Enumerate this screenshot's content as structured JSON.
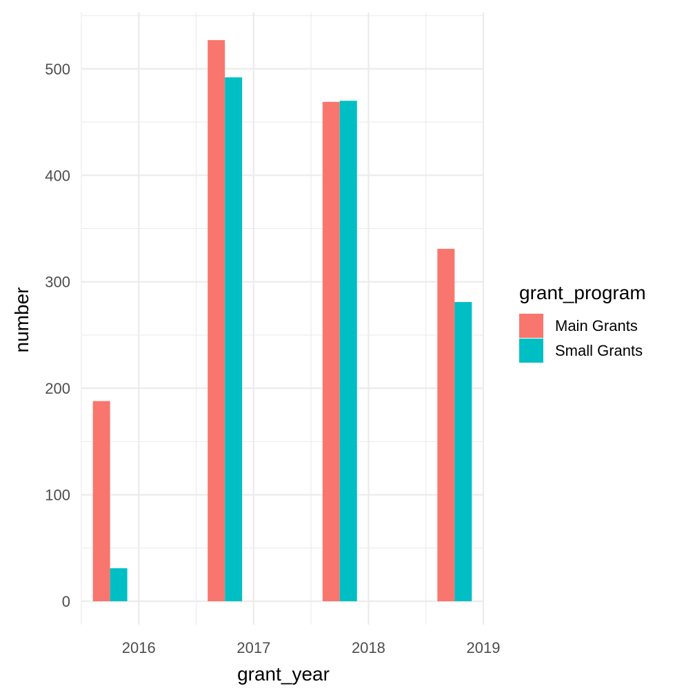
{
  "chart_data": {
    "type": "bar",
    "xlabel": "grant_year",
    "ylabel": "number",
    "x_ticks": [
      "2016",
      "2017",
      "2018",
      "2019"
    ],
    "y_ticks": [
      0,
      100,
      200,
      300,
      400,
      500
    ],
    "ylim": [
      -22,
      553
    ],
    "xlim": [
      2015.5,
      2019.0
    ],
    "bar_group_centers": [
      2015.75,
      2016.75,
      2017.75,
      2018.75
    ],
    "grid": true,
    "legend": {
      "title": "grant_program",
      "position": "right"
    },
    "series": [
      {
        "name": "Main Grants",
        "color": "#F8766D",
        "values": [
          188,
          527,
          469,
          331
        ]
      },
      {
        "name": "Small Grants",
        "color": "#00BFC4",
        "values": [
          31,
          492,
          470,
          281
        ]
      }
    ]
  }
}
